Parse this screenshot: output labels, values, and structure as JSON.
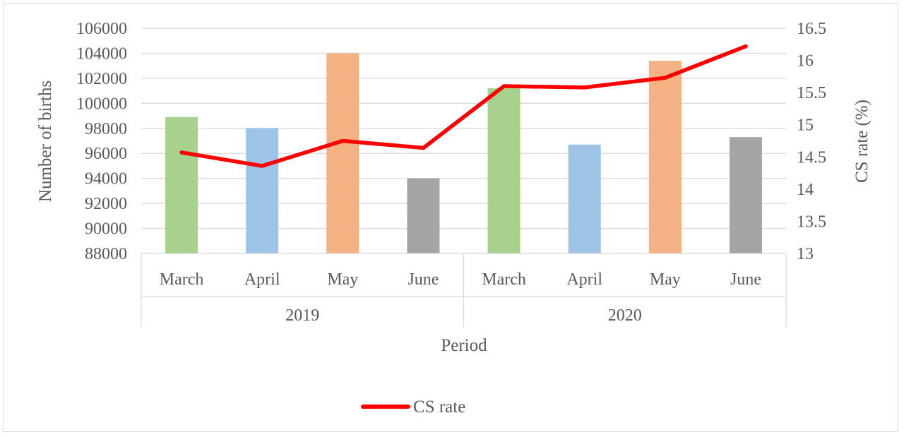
{
  "chart_data": {
    "type": "bar",
    "title": "",
    "xlabel": "Period",
    "ylabel": "Number of births",
    "y2label": "CS rate (%)",
    "groups": [
      {
        "label": "2019",
        "categories": [
          "March",
          "April",
          "May",
          "June"
        ]
      },
      {
        "label": "2020",
        "categories": [
          "March",
          "April",
          "May",
          "June"
        ]
      }
    ],
    "categories": [
      "March",
      "April",
      "May",
      "June",
      "March",
      "April",
      "May",
      "June"
    ],
    "bar_values": [
      98900,
      98000,
      104000,
      94000,
      101200,
      96700,
      103400,
      97300
    ],
    "bar_colors": [
      "#a9d18e",
      "#9dc3e6",
      "#f4b183",
      "#a5a5a5",
      "#a9d18e",
      "#9dc3e6",
      "#f4b183",
      "#a5a5a5"
    ],
    "series": [
      {
        "name": "CS rate",
        "axis": "secondary",
        "type": "line",
        "color": "#ff0000",
        "values": [
          14.57,
          14.36,
          14.75,
          14.64,
          15.6,
          15.58,
          15.73,
          16.22
        ]
      }
    ],
    "ylim": [
      88000,
      106000
    ],
    "yticks": [
      "106000",
      "104000",
      "102000",
      "100000",
      "98000",
      "96000",
      "94000",
      "92000",
      "90000",
      "88000"
    ],
    "y2lim": [
      13,
      16.5
    ],
    "y2ticks": [
      "16.5",
      "16",
      "15.5",
      "15",
      "14.5",
      "14",
      "13.5",
      "13"
    ],
    "grid": true,
    "legend": {
      "position": "bottom",
      "entries": [
        "CS rate"
      ]
    }
  }
}
